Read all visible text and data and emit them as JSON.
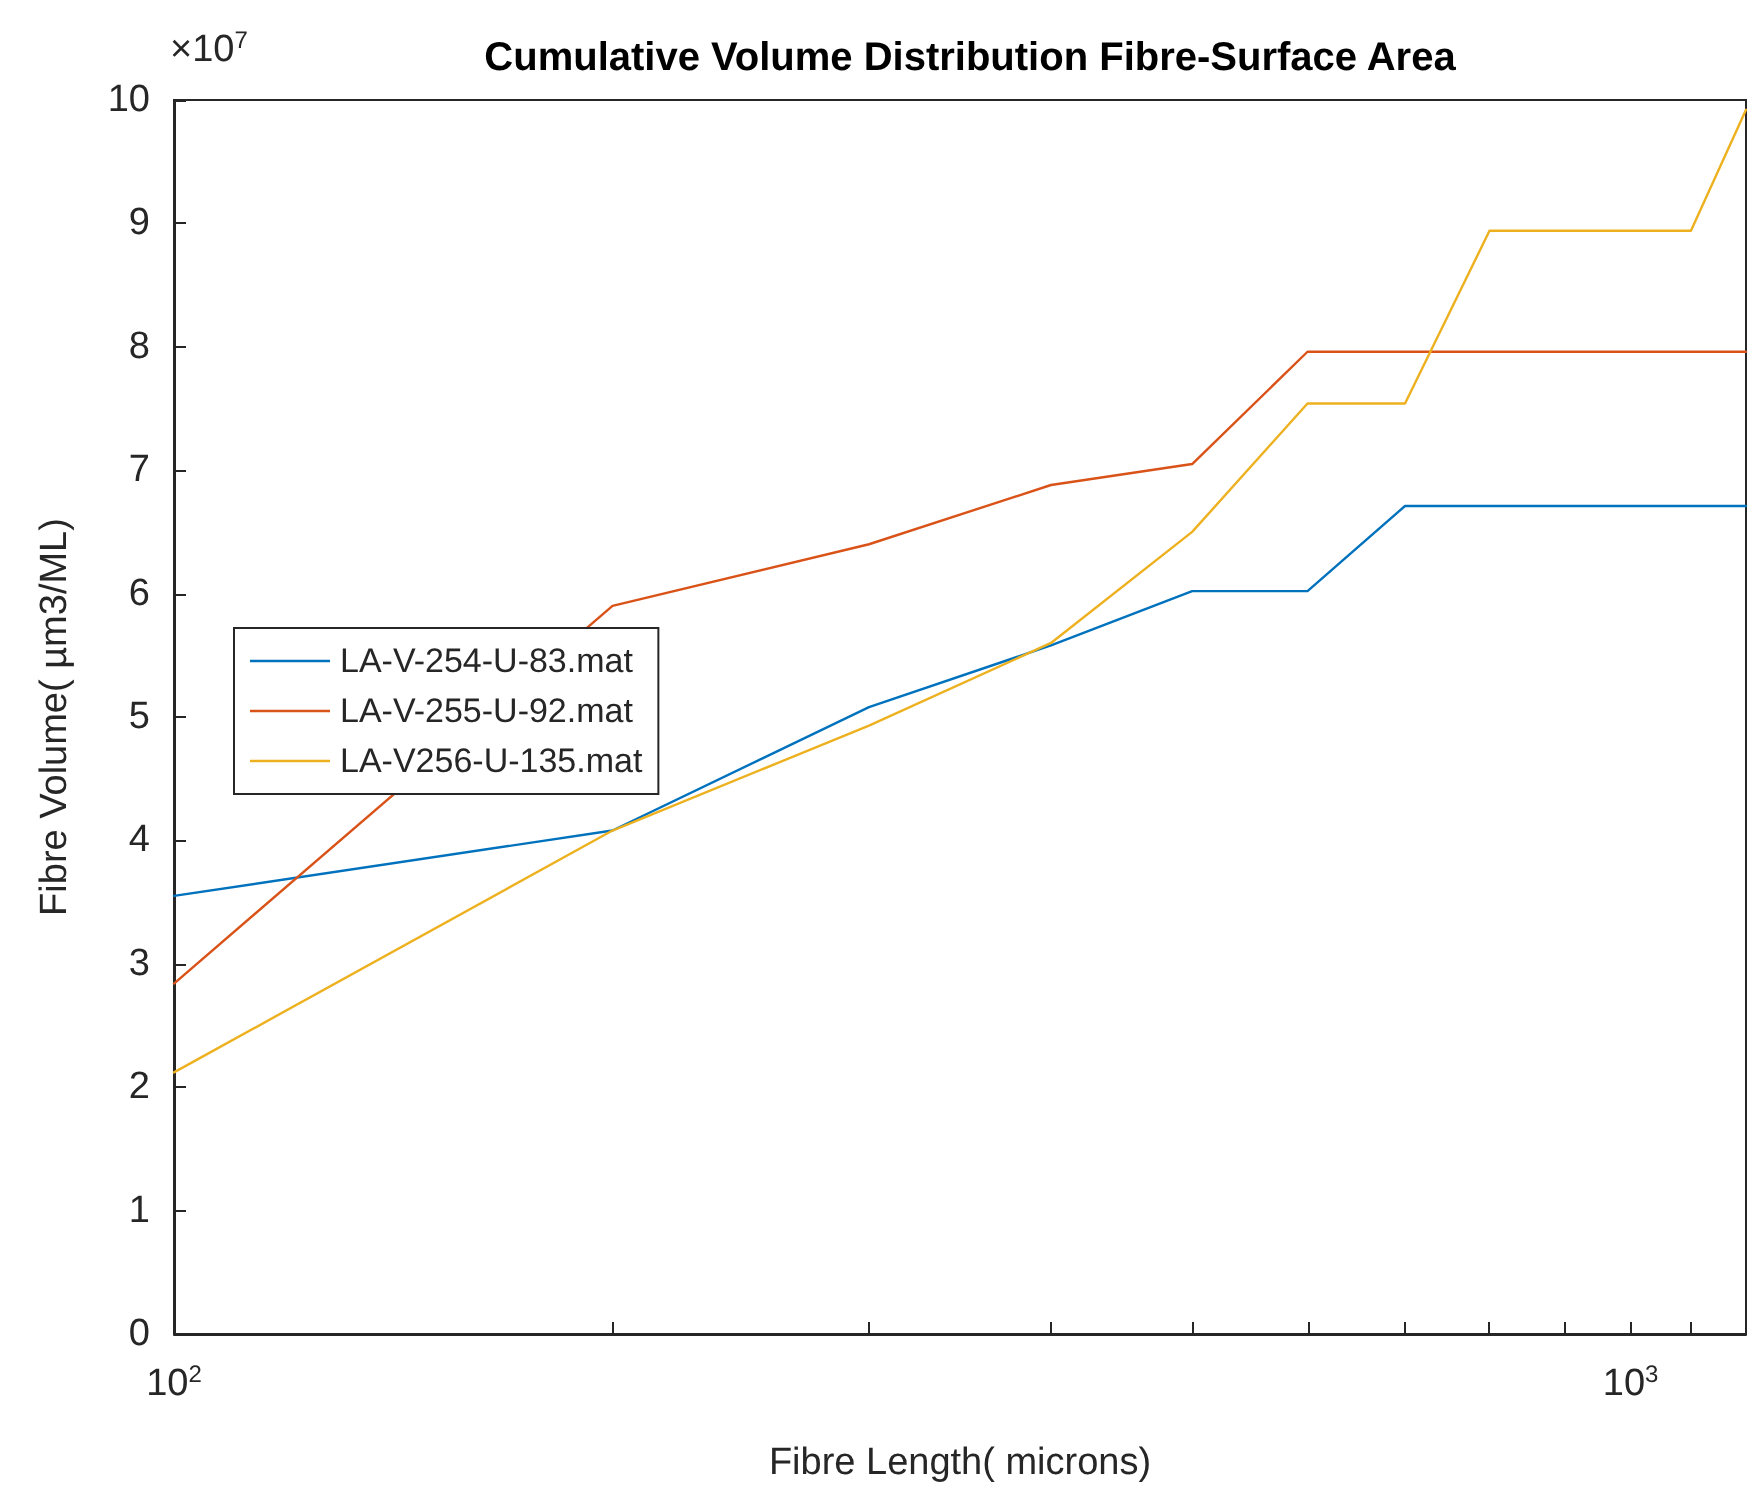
{
  "chart_data": {
    "type": "line",
    "title": "Cumulative Volume Distribution Fibre-Surface Area",
    "xlabel": "Fibre Length( microns)",
    "ylabel": "Fibre Volume( µm3/ML)",
    "annotations": [
      "×10$^{7}$"
    ],
    "x": [
      100,
      200,
      300,
      400,
      500,
      600,
      700,
      800,
      900,
      1000,
      1100,
      1200
    ],
    "series": [
      {
        "name": "LA-V-254-U-83.mat",
        "color": "#0072bd",
        "values": [
          3.55,
          4.08,
          5.08,
          5.58,
          6.02,
          6.02,
          6.71,
          6.71,
          6.71,
          6.71,
          6.71,
          6.71
        ]
      },
      {
        "name": "LA-V-255-U-92.mat",
        "color": "#d95319",
        "values": [
          2.84,
          5.9,
          6.4,
          6.88,
          7.05,
          7.96,
          7.96,
          7.96,
          7.96,
          7.96,
          7.96,
          7.96
        ]
      },
      {
        "name": "LA-V256-U-135.mat",
        "color": "#edb120",
        "values": [
          2.12,
          4.08,
          4.93,
          5.6,
          6.5,
          7.54,
          7.54,
          8.94,
          8.94,
          8.94,
          8.94,
          9.92
        ]
      }
    ],
    "log": "x",
    "xlim": [
      100,
      1200
    ],
    "xticks": [
      {
        "value": 100,
        "label": "10$^{2}$"
      },
      {
        "value": 200,
        "label": null
      },
      {
        "value": 300,
        "label": null
      },
      {
        "value": 400,
        "label": null
      },
      {
        "value": 500,
        "label": null
      },
      {
        "value": 600,
        "label": null
      },
      {
        "value": 700,
        "label": null
      },
      {
        "value": 800,
        "label": null
      },
      {
        "value": 900,
        "label": null
      },
      {
        "value": 1000,
        "label": "10$^{3}$"
      },
      {
        "value": 1100,
        "label": null
      }
    ],
    "ylim": [
      0,
      10
    ],
    "yticks": [
      0,
      1,
      2,
      3,
      4,
      5,
      6,
      7,
      8,
      9,
      10
    ],
    "grid": false,
    "legend": "left",
    "marker": "none",
    "line_style": "solid"
  }
}
